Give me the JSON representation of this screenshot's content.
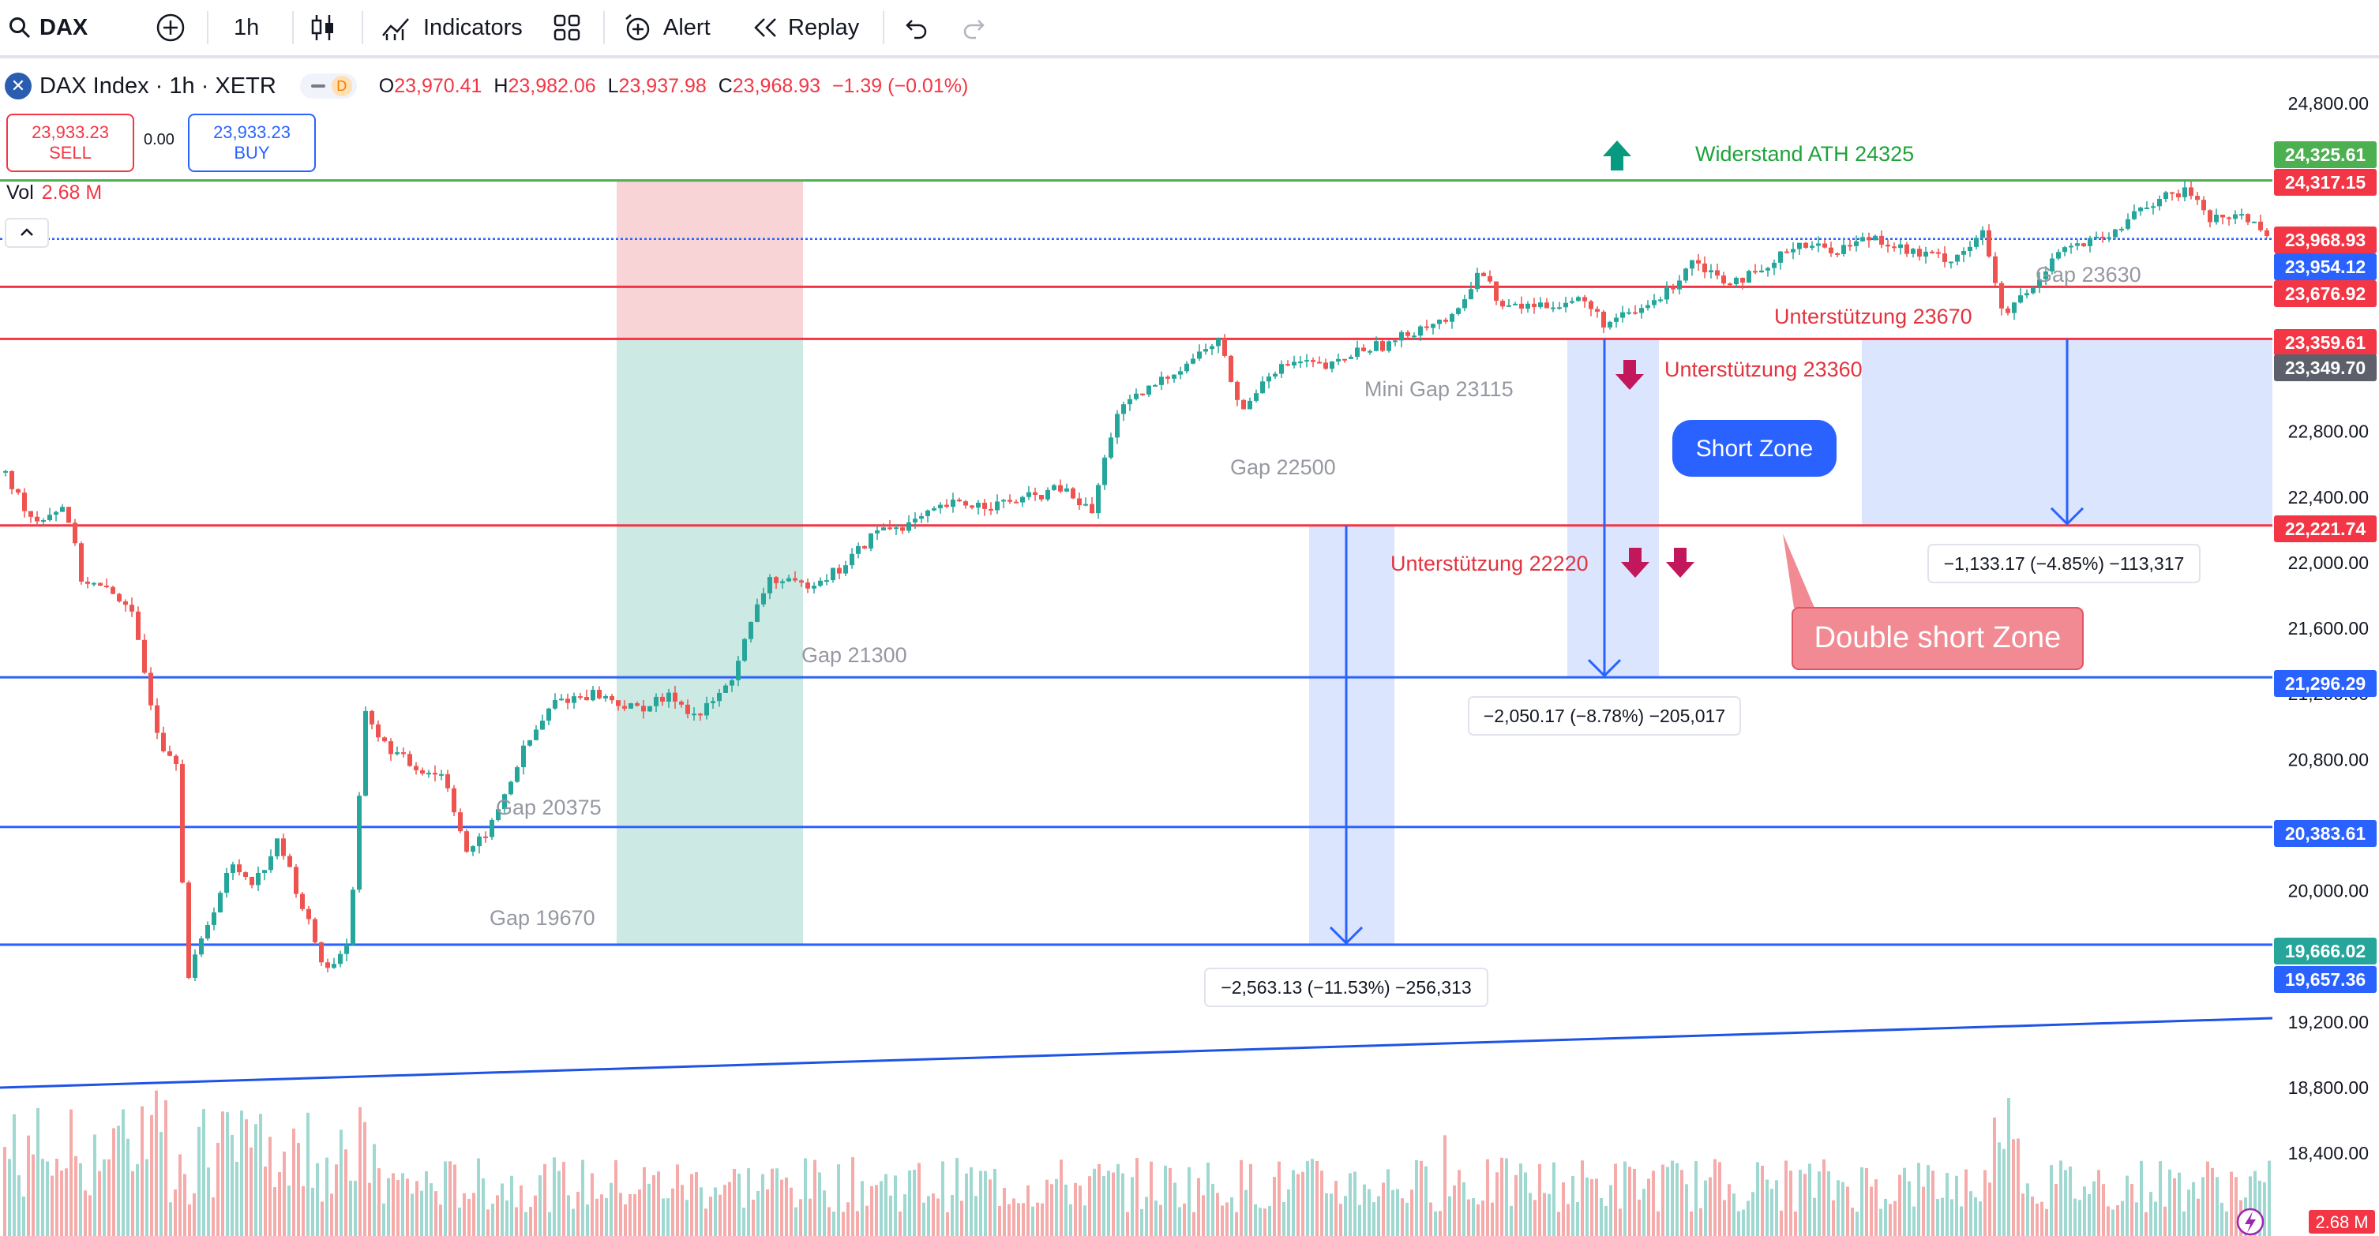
{
  "toolbar": {
    "symbol": "DAX",
    "interval": "1h",
    "indicators_label": "Indicators",
    "alert_label": "Alert",
    "replay_label": "Replay"
  },
  "legend": {
    "title": "DAX Index · 1h · XETR",
    "o_label": "O",
    "o": "23,970.41",
    "h_label": "H",
    "h": "23,982.06",
    "l_label": "L",
    "l": "23,937.98",
    "c_label": "C",
    "c": "23,968.93",
    "change": "−1.39 (−0.01%)",
    "d_badge": "D",
    "sell_price": "23,933.23",
    "sell_label": "SELL",
    "spread": "0.00",
    "buy_price": "23,933.23",
    "buy_label": "BUY",
    "vol_label": "Vol",
    "vol_value": "2.68 M"
  },
  "colors": {
    "up": "#26a69a",
    "down": "#ef5350",
    "blue_line": "#1e53e5",
    "red_line": "#f23645",
    "green_line": "#4caf50"
  },
  "chart_data": {
    "type": "candlestick",
    "symbol": "DAX Index",
    "interval": "1h",
    "ylim": [
      18150,
      24950
    ],
    "y_ticks": [
      {
        "v": 24800,
        "t": "24,800.00"
      },
      {
        "v": 22800,
        "t": "22,800.00"
      },
      {
        "v": 22400,
        "t": "22,400.00"
      },
      {
        "v": 22000,
        "t": "22,000.00"
      },
      {
        "v": 21600,
        "t": "21,600.00"
      },
      {
        "v": 21200,
        "t": "21,200.00"
      },
      {
        "v": 20800,
        "t": "20,800.00"
      },
      {
        "v": 20000,
        "t": "20,000.00"
      },
      {
        "v": 19200,
        "t": "19,200.00"
      },
      {
        "v": 18800,
        "t": "18,800.00"
      },
      {
        "v": 18400,
        "t": "18,400.00"
      }
    ],
    "price_badges": [
      {
        "v": 24325.61,
        "t": "24,325.61",
        "color": "#4caf50"
      },
      {
        "v": 24317.15,
        "t": "24,317.15",
        "color": "#f23645"
      },
      {
        "v": 23968.93,
        "t": "23,968.93",
        "color": "#f23645"
      },
      {
        "v": 23954.12,
        "t": "23,954.12",
        "color": "#2962ff"
      },
      {
        "v": 23676.92,
        "t": "23,676.92",
        "color": "#f23645"
      },
      {
        "v": 23359.61,
        "t": "23,359.61",
        "color": "#f23645"
      },
      {
        "v": 23349.7,
        "t": "23,349.70",
        "color": "#5d606b"
      },
      {
        "v": 22221.74,
        "t": "22,221.74",
        "color": "#f23645"
      },
      {
        "v": 21296.29,
        "t": "21,296.29",
        "color": "#2962ff"
      },
      {
        "v": 20383.61,
        "t": "20,383.61",
        "color": "#2962ff"
      },
      {
        "v": 19666.02,
        "t": "19,666.02",
        "color": "#26a69a"
      },
      {
        "v": 19657.36,
        "t": "19,657.36",
        "color": "#2962ff"
      }
    ],
    "vol_badge": "2.68 M",
    "price_path": [
      [
        0,
        22550
      ],
      [
        40,
        22250
      ],
      [
        80,
        22350
      ],
      [
        100,
        21900
      ],
      [
        160,
        21750
      ],
      [
        200,
        20900
      ],
      [
        220,
        20800
      ],
      [
        235,
        19450
      ],
      [
        260,
        19800
      ],
      [
        290,
        20150
      ],
      [
        320,
        20050
      ],
      [
        350,
        20300
      ],
      [
        380,
        19900
      ],
      [
        410,
        19500
      ],
      [
        440,
        19700
      ],
      [
        460,
        21100
      ],
      [
        480,
        20900
      ],
      [
        520,
        20750
      ],
      [
        560,
        20700
      ],
      [
        590,
        20200
      ],
      [
        620,
        20400
      ],
      [
        660,
        20850
      ],
      [
        700,
        21150
      ],
      [
        750,
        21200
      ],
      [
        800,
        21100
      ],
      [
        850,
        21180
      ],
      [
        880,
        21050
      ],
      [
        920,
        21250
      ],
      [
        970,
        21900
      ],
      [
        1010,
        21850
      ],
      [
        1060,
        21950
      ],
      [
        1110,
        22200
      ],
      [
        1150,
        22230
      ],
      [
        1200,
        22350
      ],
      [
        1260,
        22350
      ],
      [
        1310,
        22400
      ],
      [
        1340,
        22450
      ],
      [
        1380,
        22300
      ],
      [
        1410,
        22900
      ],
      [
        1460,
        23080
      ],
      [
        1510,
        23250
      ],
      [
        1540,
        23350
      ],
      [
        1570,
        22900
      ],
      [
        1600,
        23150
      ],
      [
        1640,
        23220
      ],
      [
        1680,
        23180
      ],
      [
        1720,
        23300
      ],
      [
        1760,
        23330
      ],
      [
        1800,
        23450
      ],
      [
        1840,
        23480
      ],
      [
        1870,
        23800
      ],
      [
        1900,
        23550
      ],
      [
        1960,
        23570
      ],
      [
        2000,
        23600
      ],
      [
        2030,
        23450
      ],
      [
        2070,
        23520
      ],
      [
        2110,
        23650
      ],
      [
        2140,
        23850
      ],
      [
        2180,
        23720
      ],
      [
        2230,
        23750
      ],
      [
        2270,
        23950
      ],
      [
        2320,
        23900
      ],
      [
        2370,
        23990
      ],
      [
        2420,
        23880
      ],
      [
        2470,
        23850
      ],
      [
        2510,
        24000
      ],
      [
        2535,
        23450
      ],
      [
        2550,
        23600
      ],
      [
        2570,
        23650
      ],
      [
        2600,
        23900
      ],
      [
        2640,
        23940
      ],
      [
        2680,
        24000
      ],
      [
        2700,
        24150
      ],
      [
        2740,
        24220
      ],
      [
        2770,
        24260
      ],
      [
        2800,
        24080
      ],
      [
        2830,
        24120
      ],
      [
        2860,
        24050
      ],
      [
        2875,
        23968.93
      ]
    ],
    "horizontal_lines": [
      {
        "v": 24325.61,
        "color": "#4caf50"
      },
      {
        "v": 23968.93,
        "color": "#2962ff",
        "dotted": true
      },
      {
        "v": 23676.92,
        "color": "#f23645"
      },
      {
        "v": 23359.61,
        "color": "#f23645"
      },
      {
        "v": 22221.74,
        "color": "#f23645"
      },
      {
        "v": 21296.29,
        "color": "#2962ff"
      },
      {
        "v": 20383.61,
        "color": "#2962ff"
      },
      {
        "v": 19666.02,
        "color": "#2962ff"
      }
    ],
    "annotations": [
      {
        "text": "Widerstand ATH  24325",
        "color": "#1ea33a"
      },
      {
        "text": "Gap 23630",
        "color": "#9598a1"
      },
      {
        "text": "Unterstützung 23670",
        "color": "#e3333f"
      },
      {
        "text": "Unterstützung 23360",
        "color": "#e3333f"
      },
      {
        "text": "Mini Gap 23115",
        "color": "#9598a1"
      },
      {
        "text": "Gap 22500",
        "color": "#9598a1"
      },
      {
        "text": "Unterstützung 22220",
        "color": "#e3333f"
      },
      {
        "text": "Gap 21300",
        "color": "#9598a1"
      },
      {
        "text": "Gap 20375",
        "color": "#9598a1"
      },
      {
        "text": "Gap 19670",
        "color": "#9598a1"
      }
    ],
    "measurements": [
      "−1,133.17 (−4.85%) −113,317",
      "−2,050.17 (−8.78%) −205,017",
      "−2,563.13 (−11.53%) −256,313"
    ],
    "callouts": [
      "Short Zone",
      "Double short Zone"
    ]
  }
}
